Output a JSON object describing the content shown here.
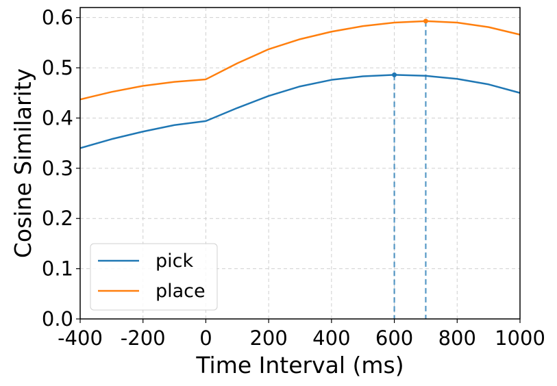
{
  "chart_data": {
    "type": "line",
    "title": "",
    "xlabel": "Time Interval (ms)",
    "ylabel": "Cosine Similarity",
    "xlim": [
      -400,
      1000
    ],
    "ylim": [
      0.0,
      0.62
    ],
    "x_ticks": [
      -400,
      -200,
      0,
      200,
      400,
      600,
      800,
      1000
    ],
    "y_ticks": [
      0.0,
      0.1,
      0.2,
      0.3,
      0.4,
      0.5,
      0.6
    ],
    "x_tick_labels": [
      "-400",
      "-200",
      "0",
      "200",
      "400",
      "600",
      "800",
      "1000"
    ],
    "y_tick_labels": [
      "0.0",
      "0.1",
      "0.2",
      "0.3",
      "0.4",
      "0.5",
      "0.6"
    ],
    "grid": true,
    "legend_position": "lower-left",
    "x": [
      -400,
      -300,
      -200,
      -100,
      0,
      100,
      200,
      300,
      400,
      500,
      600,
      700,
      800,
      900,
      1000
    ],
    "series": [
      {
        "name": "pick",
        "color": "#1f77b4",
        "values": [
          0.34,
          0.358,
          0.373,
          0.386,
          0.394,
          0.42,
          0.444,
          0.463,
          0.476,
          0.483,
          0.486,
          0.484,
          0.478,
          0.467,
          0.45
        ],
        "peak": {
          "x": 600,
          "y": 0.486
        }
      },
      {
        "name": "place",
        "color": "#ff7f0e",
        "values": [
          0.437,
          0.452,
          0.464,
          0.472,
          0.477,
          0.509,
          0.537,
          0.557,
          0.572,
          0.583,
          0.59,
          0.593,
          0.59,
          0.581,
          0.566
        ],
        "peak": {
          "x": 700,
          "y": 0.593
        }
      }
    ]
  }
}
